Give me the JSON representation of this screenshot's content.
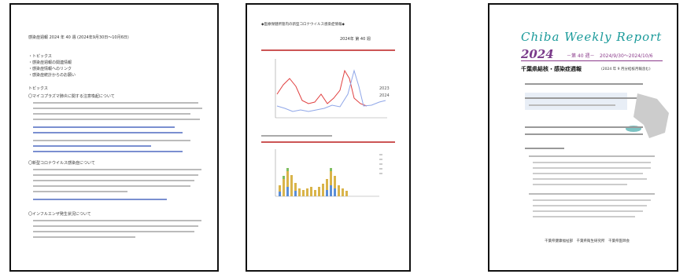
{
  "pages": [
    {
      "header": "感染症週報 2024 年 40 週 (2024年9月30日～10月6日)",
      "toc": [
        "・トピックス",
        "・感染症週報の関連情報",
        "・感染症情報へのリンク",
        "・感染症統計からのお願い"
      ],
      "sections": [
        "トピックス",
        "〇マイコプラズマ肺炎に関する注意喚起について",
        "〇新型コロナウイルス感染症について",
        "〇インフルエンザ発生状況について"
      ]
    },
    {
      "header": "◆医療保健所管内の新型コロナウイルス感染症情報◆",
      "week": "2024年 第 40 週",
      "legend": [
        "2023",
        "2024"
      ]
    },
    {
      "title": "Chiba Weekly Report",
      "year": "2024",
      "week": "－第 40 週－",
      "period": "2024/9/30～2024/10/6",
      "subtitle": "千葉県結核・感染症週報",
      "note": "(2024 年 9 月分結核月報含む)",
      "footer": "千葉県健康福祉部　千葉県衛生研究所　千葉県医師会"
    }
  ]
}
